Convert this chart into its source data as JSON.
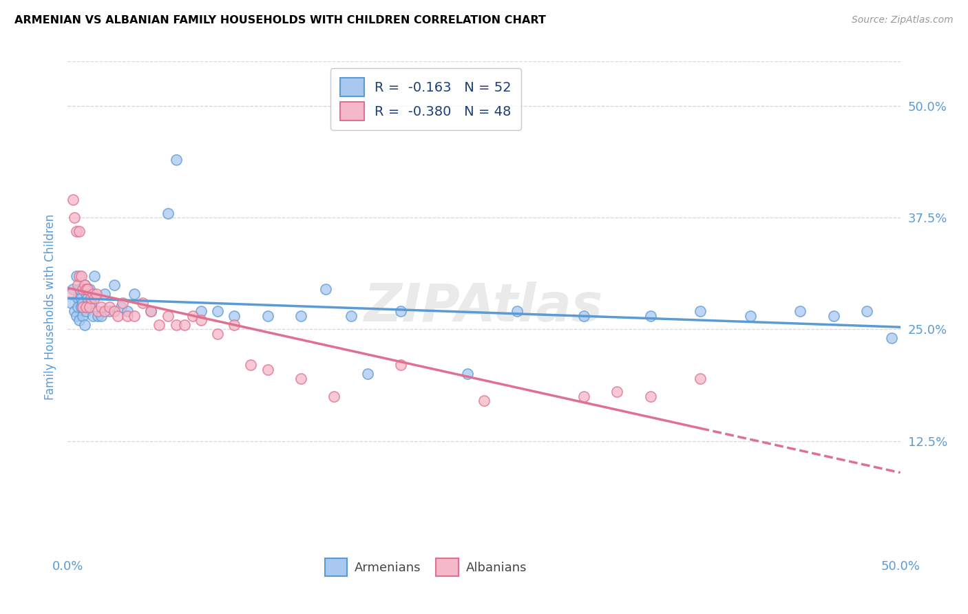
{
  "title": "ARMENIAN VS ALBANIAN FAMILY HOUSEHOLDS WITH CHILDREN CORRELATION CHART",
  "source": "Source: ZipAtlas.com",
  "ylabel": "Family Households with Children",
  "xlim": [
    0.0,
    0.5
  ],
  "ylim": [
    0.0,
    0.55
  ],
  "ytick_vals": [
    0.125,
    0.25,
    0.375,
    0.5
  ],
  "ytick_labels": [
    "12.5%",
    "25.0%",
    "37.5%",
    "50.0%"
  ],
  "xtick_vals": [
    0.0,
    0.5
  ],
  "xtick_labels": [
    "0.0%",
    "50.0%"
  ],
  "legend_r_arm": "R =  -0.163",
  "legend_n_arm": "N = 52",
  "legend_r_alb": "R =  -0.380",
  "legend_n_alb": "N = 48",
  "color_armenian_fill": "#A8C8F0",
  "color_armenian_edge": "#5B9BD5",
  "color_albanian_fill": "#F5B8C8",
  "color_albanian_edge": "#E07090",
  "color_line_armenian": "#5B9BD5",
  "color_line_albanian": "#E07090",
  "background_color": "#FFFFFF",
  "grid_color": "#CCCCCC",
  "title_color": "#000000",
  "source_color": "#999999",
  "axis_color": "#5B9BD5",
  "watermark": "ZIPAtlas",
  "watermark_color": "#DDDDDD",
  "armenian_x": [
    0.002,
    0.003,
    0.004,
    0.005,
    0.005,
    0.006,
    0.006,
    0.007,
    0.007,
    0.008,
    0.008,
    0.009,
    0.009,
    0.01,
    0.01,
    0.011,
    0.011,
    0.012,
    0.013,
    0.014,
    0.015,
    0.016,
    0.018,
    0.02,
    0.022,
    0.025,
    0.028,
    0.032,
    0.036,
    0.04,
    0.05,
    0.065,
    0.08,
    0.1,
    0.12,
    0.155,
    0.17,
    0.2,
    0.24,
    0.27,
    0.31,
    0.35,
    0.38,
    0.41,
    0.44,
    0.46,
    0.48,
    0.495,
    0.06,
    0.09,
    0.14,
    0.18
  ],
  "armenian_y": [
    0.28,
    0.295,
    0.27,
    0.31,
    0.265,
    0.285,
    0.275,
    0.295,
    0.26,
    0.285,
    0.275,
    0.28,
    0.265,
    0.3,
    0.255,
    0.29,
    0.27,
    0.285,
    0.295,
    0.28,
    0.265,
    0.31,
    0.265,
    0.265,
    0.29,
    0.27,
    0.3,
    0.275,
    0.27,
    0.29,
    0.27,
    0.44,
    0.27,
    0.265,
    0.265,
    0.295,
    0.265,
    0.27,
    0.2,
    0.27,
    0.265,
    0.265,
    0.27,
    0.265,
    0.27,
    0.265,
    0.27,
    0.24,
    0.38,
    0.27,
    0.265,
    0.2
  ],
  "albanian_x": [
    0.002,
    0.003,
    0.004,
    0.005,
    0.006,
    0.007,
    0.007,
    0.008,
    0.009,
    0.009,
    0.01,
    0.011,
    0.011,
    0.012,
    0.013,
    0.014,
    0.015,
    0.016,
    0.017,
    0.018,
    0.02,
    0.022,
    0.025,
    0.028,
    0.03,
    0.033,
    0.036,
    0.04,
    0.045,
    0.05,
    0.055,
    0.06,
    0.065,
    0.07,
    0.075,
    0.08,
    0.09,
    0.1,
    0.11,
    0.12,
    0.14,
    0.16,
    0.2,
    0.25,
    0.31,
    0.33,
    0.35,
    0.38
  ],
  "albanian_y": [
    0.29,
    0.395,
    0.375,
    0.36,
    0.3,
    0.36,
    0.31,
    0.31,
    0.295,
    0.275,
    0.3,
    0.295,
    0.275,
    0.295,
    0.275,
    0.285,
    0.29,
    0.285,
    0.29,
    0.27,
    0.275,
    0.27,
    0.275,
    0.27,
    0.265,
    0.28,
    0.265,
    0.265,
    0.28,
    0.27,
    0.255,
    0.265,
    0.255,
    0.255,
    0.265,
    0.26,
    0.245,
    0.255,
    0.21,
    0.205,
    0.195,
    0.175,
    0.21,
    0.17,
    0.175,
    0.18,
    0.175,
    0.195
  ]
}
